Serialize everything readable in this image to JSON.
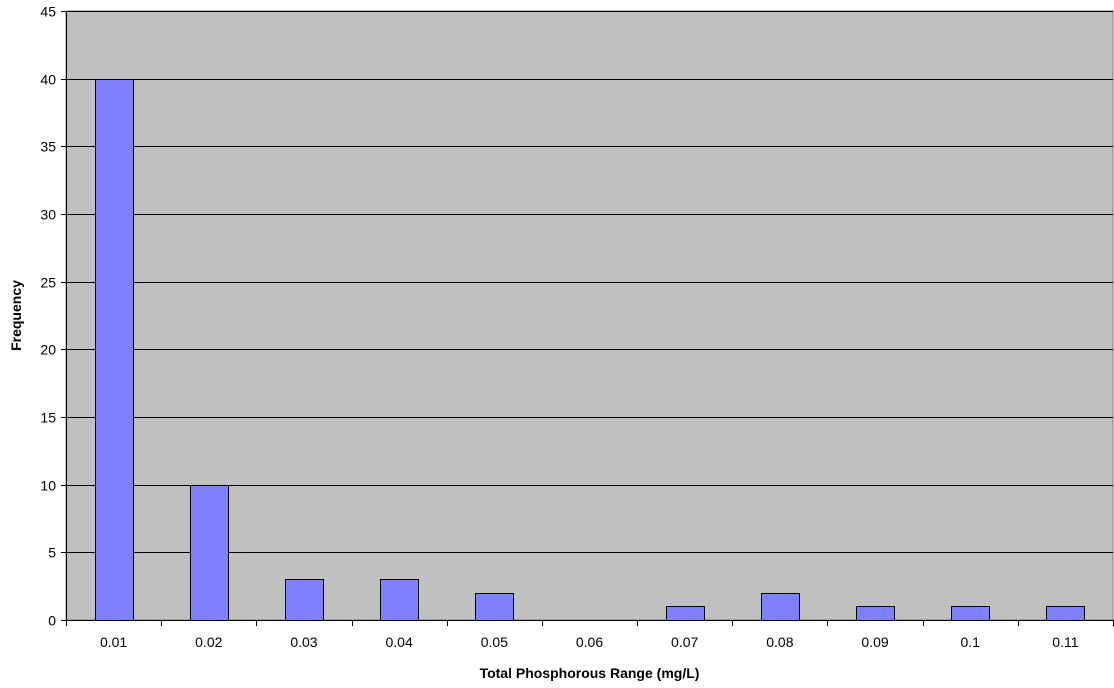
{
  "chart_data": {
    "type": "bar",
    "title": "",
    "xlabel": "Total Phosphorous Range (mg/L)",
    "ylabel": "Frequency",
    "categories": [
      "0.01",
      "0.02",
      "0.03",
      "0.04",
      "0.05",
      "0.06",
      "0.07",
      "0.08",
      "0.09",
      "0.1",
      "0.11"
    ],
    "values": [
      40,
      10,
      3,
      3,
      2,
      0,
      1,
      2,
      1,
      1,
      1
    ],
    "ylim": [
      0,
      45
    ],
    "yticks": [
      0,
      5,
      10,
      15,
      20,
      25,
      30,
      35,
      40,
      45
    ],
    "grid": true,
    "legend": "none",
    "colors": {
      "plot_background": "#c0c0c0",
      "bar_fill": "#8080ff",
      "bar_stroke": "#000000",
      "gridline": "#000000"
    }
  }
}
